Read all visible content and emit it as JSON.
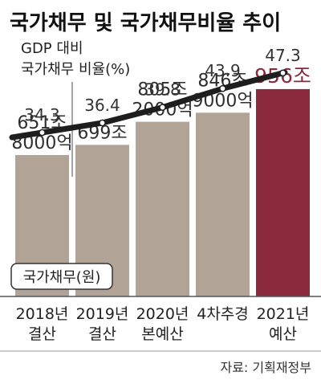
{
  "chart_data": {
    "type": "bar",
    "title": "국가채무 및 국가채무비율 추이",
    "categories": [
      [
        "2018년",
        "결산"
      ],
      [
        "2019년",
        "결산"
      ],
      [
        "2020년",
        "본예산"
      ],
      [
        "4차추경"
      ],
      [
        "2021년",
        "예산"
      ]
    ],
    "series": [
      {
        "name": "국가채무(원)",
        "type": "bar",
        "values": [
          651.8,
          699,
          805.2,
          846.9,
          956
        ],
        "labels": [
          [
            "651조",
            "8000억"
          ],
          [
            "699조"
          ],
          [
            "805조",
            "2000억"
          ],
          [
            "846조",
            "9000억"
          ],
          [
            "956조"
          ]
        ],
        "ylim": [
          0,
          1100
        ]
      },
      {
        "name": "GDP 대비 국가채무 비율(%)",
        "type": "line",
        "values": [
          34.3,
          36.4,
          39.8,
          43.9,
          47.3
        ],
        "labels": [
          "34.3",
          "36.4",
          "39.8",
          "43.9",
          "47.3"
        ],
        "ylim": [
          18,
          52
        ]
      }
    ],
    "line_annotation": [
      "GDP 대비",
      "국가채무 비율(%)"
    ],
    "source": "자료: 기획재정부",
    "colors": {
      "bar": "#b1a497",
      "bar_highlight": "#8a2a3c",
      "line": "#1e1e1e",
      "label_highlight": "#8a2a3c"
    }
  }
}
